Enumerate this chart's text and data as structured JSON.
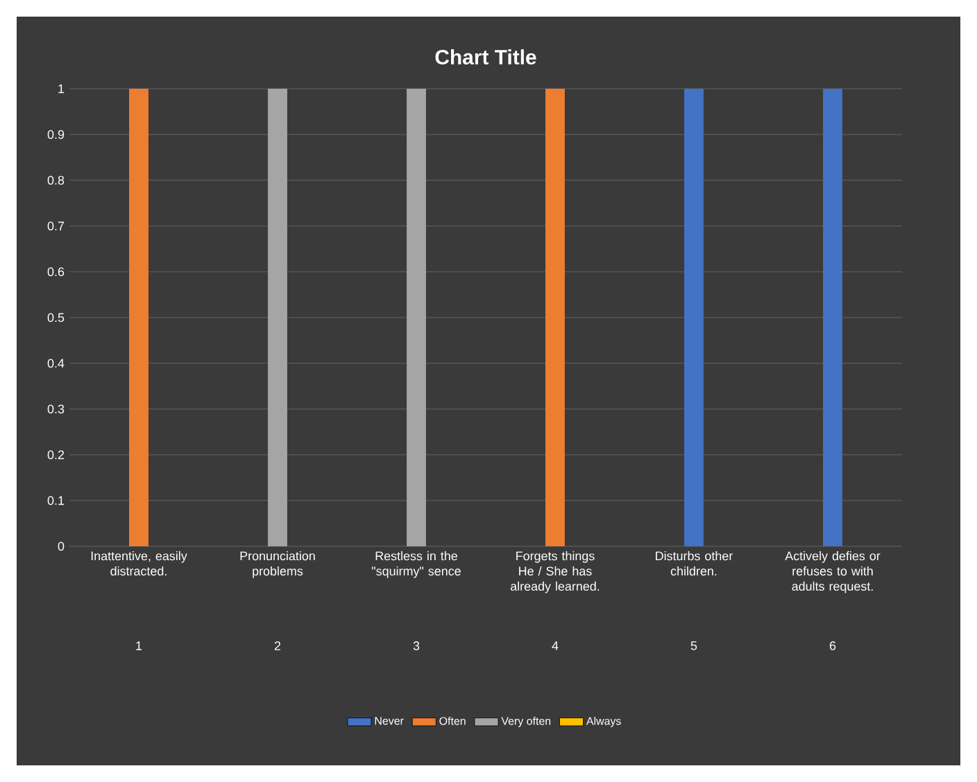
{
  "chart_data": {
    "type": "bar",
    "title": "Chart Title",
    "categories": [
      "Inattentive, easily distracted.",
      "Pronunciation problems",
      "Restless in the \"squirmy\" sence",
      "Forgets things He / She has already learned.",
      "Disturbs other children.",
      "Actively defies or refuses to with adults request."
    ],
    "series": [
      {
        "name": "Never",
        "color": "#4472c4",
        "values": [
          null,
          null,
          null,
          null,
          1,
          1
        ]
      },
      {
        "name": "Often",
        "color": "#ed7d31",
        "values": [
          1,
          null,
          null,
          1,
          null,
          null
        ]
      },
      {
        "name": "Very often",
        "color": "#a5a5a5",
        "values": [
          null,
          1,
          1,
          null,
          null,
          null
        ]
      },
      {
        "name": "Always",
        "color": "#ffc000",
        "values": [
          null,
          null,
          null,
          null,
          null,
          null
        ]
      }
    ],
    "annotations": [
      "1",
      "2",
      "3",
      "4",
      "5",
      "6"
    ],
    "ylim": [
      0,
      1
    ],
    "yticks": [
      0,
      0.1,
      0.2,
      0.3,
      0.4,
      0.5,
      0.6,
      0.7,
      0.8,
      0.9,
      1
    ],
    "grid": "y",
    "legend": "bottom"
  }
}
